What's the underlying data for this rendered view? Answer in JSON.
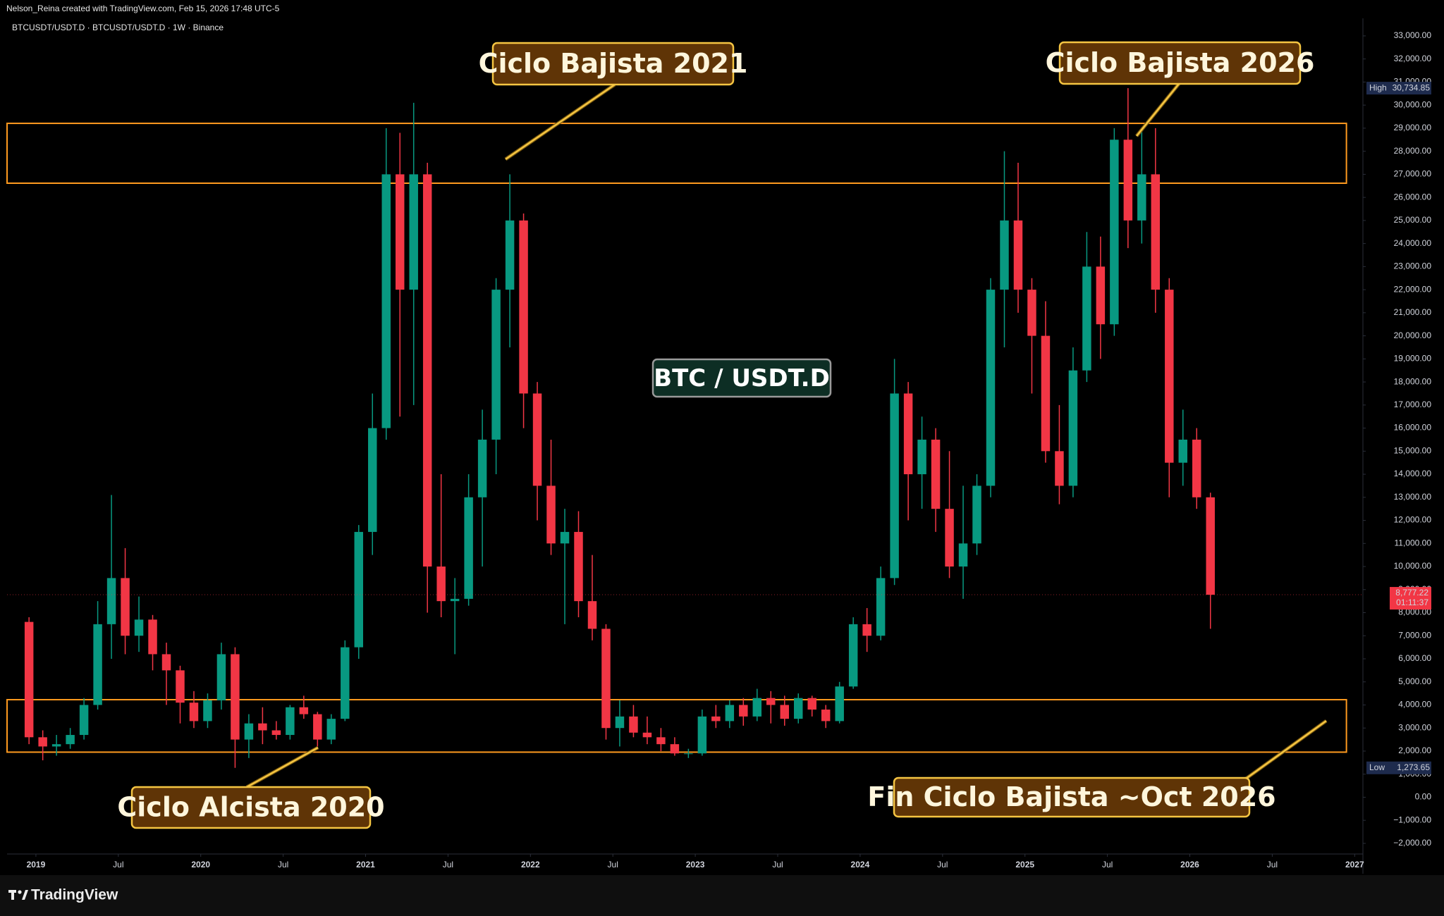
{
  "header": {
    "author_line": "Nelson_Reina created with TradingView.com, Feb 15, 2026 17:48 UTC-5",
    "symbol_line": "BTCUSDT/USDT.D · BTCUSDT/USDT.D · 1W · Binance"
  },
  "brand": "TradingView",
  "chart_data": {
    "type": "candlestick",
    "up_color": "#089981",
    "down_color": "#f23645",
    "grid": false,
    "x": [
      "2018-12",
      "2019-01",
      "2019-02",
      "2019-03",
      "2019-04",
      "2019-05",
      "2019-06",
      "2019-07",
      "2019-08",
      "2019-09",
      "2019-10",
      "2019-11",
      "2019-12",
      "2020-01",
      "2020-02",
      "2020-03",
      "2020-04",
      "2020-05",
      "2020-06",
      "2020-07",
      "2020-08",
      "2020-09",
      "2020-10",
      "2020-11",
      "2020-12",
      "2021-01",
      "2021-02",
      "2021-03",
      "2021-04",
      "2021-05",
      "2021-06",
      "2021-07",
      "2021-08",
      "2021-09",
      "2021-10",
      "2021-11",
      "2021-12",
      "2022-01",
      "2022-02",
      "2022-03",
      "2022-04",
      "2022-05",
      "2022-06",
      "2022-07",
      "2022-08",
      "2022-09",
      "2022-10",
      "2022-11",
      "2022-12",
      "2023-01",
      "2023-02",
      "2023-03",
      "2023-04",
      "2023-05",
      "2023-06",
      "2023-07",
      "2023-08",
      "2023-09",
      "2023-10",
      "2023-11",
      "2023-12",
      "2024-01",
      "2024-02",
      "2024-03",
      "2024-04",
      "2024-05",
      "2024-06",
      "2024-07",
      "2024-08",
      "2024-09",
      "2024-10",
      "2024-11",
      "2024-12",
      "2025-01",
      "2025-02",
      "2025-03",
      "2025-04",
      "2025-05",
      "2025-06",
      "2025-07",
      "2025-08",
      "2025-09",
      "2025-10",
      "2025-11",
      "2025-12",
      "2026-01",
      "2026-02"
    ],
    "open": [
      7600,
      2600,
      2200,
      2300,
      2700,
      4000,
      7500,
      9500,
      7000,
      7700,
      6200,
      5500,
      4100,
      3300,
      4200,
      6200,
      2500,
      3200,
      2900,
      2700,
      3900,
      3600,
      2500,
      3400,
      6500,
      11500,
      16000,
      27000,
      22000,
      27000,
      10000,
      8500,
      8600,
      13000,
      15500,
      22000,
      25000,
      17500,
      13500,
      11000,
      11500,
      8500,
      7300,
      3000,
      3500,
      2800,
      2600,
      2300,
      1900,
      1900,
      3500,
      3300,
      4000,
      3500,
      4300,
      4000,
      3400,
      4300,
      3800,
      3300,
      4800,
      7500,
      7000,
      9500,
      17500,
      14000,
      15500,
      12500,
      10000,
      11000,
      13500,
      22000,
      25000,
      22000,
      20000,
      15000,
      13500,
      18500,
      23000,
      20500,
      28500,
      25000,
      27000,
      22000,
      14500,
      15500,
      13000
    ],
    "high": [
      7800,
      2900,
      2700,
      3000,
      4300,
      8500,
      13100,
      10800,
      8700,
      7900,
      6700,
      5700,
      4600,
      4500,
      6700,
      6500,
      3600,
      3900,
      3300,
      4000,
      4400,
      3700,
      3600,
      6800,
      11800,
      17500,
      29000,
      28800,
      30100,
      27500,
      14000,
      9500,
      14000,
      16800,
      22500,
      27000,
      25300,
      18000,
      15500,
      12500,
      12400,
      10500,
      7500,
      4200,
      4000,
      3500,
      3000,
      2600,
      2100,
      3800,
      4000,
      4200,
      4300,
      4700,
      4600,
      4400,
      4500,
      4400,
      4000,
      5000,
      7800,
      8200,
      10000,
      19000,
      18000,
      16500,
      16000,
      15000,
      13500,
      14000,
      22500,
      28000,
      27500,
      22500,
      21500,
      17000,
      19500,
      24500,
      24300,
      29000,
      30734.85,
      29000,
      29000,
      22500,
      16800,
      16000,
      13200
    ],
    "low": [
      2300,
      1600,
      1800,
      2100,
      2500,
      3800,
      6000,
      6200,
      6300,
      5500,
      4000,
      3200,
      3000,
      3000,
      3800,
      1273.65,
      1700,
      2300,
      2500,
      2500,
      3400,
      2200,
      2300,
      3300,
      6000,
      10500,
      15500,
      16500,
      17000,
      8000,
      7800,
      6200,
      8300,
      10000,
      14000,
      19500,
      16000,
      12000,
      10500,
      7500,
      7800,
      6800,
      2500,
      2200,
      2600,
      2300,
      2000,
      1800,
      1700,
      1800,
      3000,
      3000,
      3100,
      3300,
      3200,
      3100,
      3200,
      3500,
      3000,
      3200,
      4700,
      6300,
      6800,
      9200,
      12000,
      12500,
      11500,
      9500,
      8600,
      10500,
      13000,
      19500,
      21000,
      17500,
      14500,
      12700,
      13000,
      18000,
      19000,
      20000,
      23800,
      24000,
      21000,
      13000,
      13500,
      12500,
      7300
    ],
    "close": [
      2600,
      2200,
      2300,
      2700,
      4000,
      7500,
      9500,
      7000,
      7700,
      6200,
      5500,
      4100,
      3300,
      4200,
      6200,
      2500,
      3200,
      2900,
      2700,
      3900,
      3600,
      2500,
      3400,
      6500,
      11500,
      16000,
      27000,
      22000,
      27000,
      10000,
      8500,
      8600,
      13000,
      15500,
      22000,
      25000,
      17500,
      13500,
      11000,
      11500,
      8500,
      7300,
      3000,
      3500,
      2800,
      2600,
      2300,
      1900,
      1900,
      3500,
      3300,
      4000,
      3500,
      4300,
      4000,
      3400,
      4300,
      3800,
      3300,
      4800,
      7500,
      7000,
      9500,
      17500,
      14000,
      15500,
      12500,
      10000,
      11000,
      13500,
      22000,
      25000,
      22000,
      20000,
      15000,
      13500,
      18500,
      23000,
      20500,
      28500,
      25000,
      27000,
      22000,
      14500,
      15500,
      13000,
      8777.22
    ],
    "xlim": [
      2018.825,
      2027.05
    ],
    "xticks": [
      {
        "value": 2019,
        "label": "2019"
      },
      {
        "value": 2019.5,
        "label": "Jul"
      },
      {
        "value": 2020,
        "label": "2020"
      },
      {
        "value": 2020.5,
        "label": "Jul"
      },
      {
        "value": 2021,
        "label": "2021"
      },
      {
        "value": 2021.5,
        "label": "Jul"
      },
      {
        "value": 2022,
        "label": "2022"
      },
      {
        "value": 2022.5,
        "label": "Jul"
      },
      {
        "value": 2023,
        "label": "2023"
      },
      {
        "value": 2023.5,
        "label": "Jul"
      },
      {
        "value": 2024,
        "label": "2024"
      },
      {
        "value": 2024.5,
        "label": "Jul"
      },
      {
        "value": 2025,
        "label": "2025"
      },
      {
        "value": 2025.5,
        "label": "Jul"
      },
      {
        "value": 2026,
        "label": "2026"
      },
      {
        "value": 2026.5,
        "label": "Jul"
      },
      {
        "value": 2027,
        "label": "2027"
      }
    ],
    "ylim": [
      -2460,
      33670
    ],
    "yticks": [
      {
        "value": 33000,
        "label": "33,000.00"
      },
      {
        "value": 32000,
        "label": "32,000.00"
      },
      {
        "value": 31000,
        "label": "31,000.00"
      },
      {
        "value": 30000,
        "label": "30,000.00"
      },
      {
        "value": 29000,
        "label": "29,000.00"
      },
      {
        "value": 28000,
        "label": "28,000.00"
      },
      {
        "value": 27000,
        "label": "27,000.00"
      },
      {
        "value": 26000,
        "label": "26,000.00"
      },
      {
        "value": 25000,
        "label": "25,000.00"
      },
      {
        "value": 24000,
        "label": "24,000.00"
      },
      {
        "value": 23000,
        "label": "23,000.00"
      },
      {
        "value": 22000,
        "label": "22,000.00"
      },
      {
        "value": 21000,
        "label": "21,000.00"
      },
      {
        "value": 20000,
        "label": "20,000.00"
      },
      {
        "value": 19000,
        "label": "19,000.00"
      },
      {
        "value": 18000,
        "label": "18,000.00"
      },
      {
        "value": 17000,
        "label": "17,000.00"
      },
      {
        "value": 16000,
        "label": "16,000.00"
      },
      {
        "value": 15000,
        "label": "15,000.00"
      },
      {
        "value": 14000,
        "label": "14,000.00"
      },
      {
        "value": 13000,
        "label": "13,000.00"
      },
      {
        "value": 12000,
        "label": "12,000.00"
      },
      {
        "value": 11000,
        "label": "11,000.00"
      },
      {
        "value": 10000,
        "label": "10,000.00"
      },
      {
        "value": 9000,
        "label": "9,000.00"
      },
      {
        "value": 8000,
        "label": "8,000.00"
      },
      {
        "value": 7000,
        "label": "7,000.00"
      },
      {
        "value": 6000,
        "label": "6,000.00"
      },
      {
        "value": 5000,
        "label": "5,000.00"
      },
      {
        "value": 4000,
        "label": "4,000.00"
      },
      {
        "value": 3000,
        "label": "3,000.00"
      },
      {
        "value": 2000,
        "label": "2,000.00"
      },
      {
        "value": 1000,
        "label": "1,000.00"
      },
      {
        "value": 0,
        "label": "0.00"
      },
      {
        "value": -1000,
        "label": "−1,000.00"
      },
      {
        "value": -2000,
        "label": "−2,000.00"
      }
    ],
    "zones": [
      {
        "y": [
          26615,
          29209
        ],
        "x_end": 2026.95,
        "color": "#ff9a1f"
      },
      {
        "y": [
          1955,
          4229
        ],
        "x_end": 2026.95,
        "color": "#ff9a1f"
      }
    ],
    "high_marker": {
      "label": "High",
      "value": 30734.85,
      "value_label": "30,734.85"
    },
    "low_marker": {
      "label": "Low",
      "value": 1273.65,
      "value_label": "1,273.65"
    },
    "last_price": {
      "value": 8777.22,
      "value_label": "8,777.22",
      "countdown": "01:11:37"
    },
    "annotations": [
      "Ciclo Bajista 2021",
      "Ciclo Bajista 2026",
      "Ciclo Alcista 2020",
      "Fin Ciclo Bajista ~Oct 2026",
      "BTC / USDT.D"
    ]
  }
}
